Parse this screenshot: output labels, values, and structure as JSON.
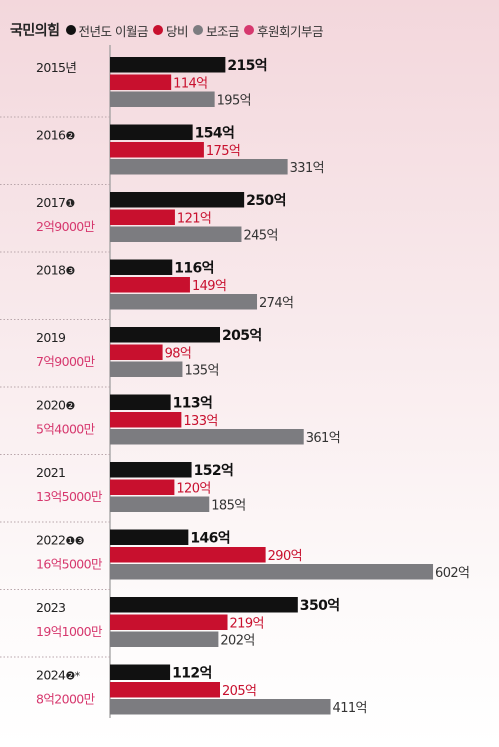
{
  "legend": {
    "party": "국민의힘",
    "items": [
      {
        "label": "전년도 이월금",
        "color": "#111111"
      },
      {
        "label": "당비",
        "color": "#c8102e"
      },
      {
        "label": "보조금",
        "color": "#7c7c80"
      },
      {
        "label": "후원회기부금",
        "color": "#d6386e"
      }
    ]
  },
  "chart_data": {
    "type": "bar",
    "orientation": "horizontal",
    "unit": "억",
    "series": [
      {
        "name": "전년도 이월금",
        "color": "#111111"
      },
      {
        "name": "당비",
        "color": "#c8102e"
      },
      {
        "name": "보조금",
        "color": "#7c7c80"
      }
    ],
    "donation_color": "#d6386e",
    "years": [
      {
        "year": "2015년",
        "marker": "",
        "donation": "",
        "values": [
          215,
          114,
          195
        ],
        "labels": [
          "215억",
          "114억",
          "195억"
        ]
      },
      {
        "year": "2016",
        "marker": "❷",
        "donation": "",
        "values": [
          154,
          175,
          331
        ],
        "labels": [
          "154억",
          "175억",
          "331억"
        ]
      },
      {
        "year": "2017",
        "marker": "❶",
        "donation": "2억9000만",
        "values": [
          250,
          121,
          245
        ],
        "labels": [
          "250억",
          "121억",
          "245억"
        ]
      },
      {
        "year": "2018",
        "marker": "❸",
        "donation": "",
        "values": [
          116,
          149,
          274
        ],
        "labels": [
          "116억",
          "149억",
          "274억"
        ]
      },
      {
        "year": "2019",
        "marker": "",
        "donation": "7억9000만",
        "values": [
          205,
          98,
          135
        ],
        "labels": [
          "205억",
          "98억",
          "135억"
        ]
      },
      {
        "year": "2020",
        "marker": "❷",
        "donation": "5억4000만",
        "values": [
          113,
          133,
          361
        ],
        "labels": [
          "113억",
          "133억",
          "361억"
        ]
      },
      {
        "year": "2021",
        "marker": "",
        "donation": "13억5000만",
        "values": [
          152,
          120,
          185
        ],
        "labels": [
          "152억",
          "120억",
          "185억"
        ]
      },
      {
        "year": "2022",
        "marker": "❶❸",
        "donation": "16억5000만",
        "values": [
          146,
          290,
          602
        ],
        "labels": [
          "146억",
          "290억",
          "602억"
        ]
      },
      {
        "year": "2023",
        "marker": "",
        "donation": "19억1000만",
        "values": [
          350,
          219,
          202
        ],
        "labels": [
          "350억",
          "219억",
          "202억"
        ]
      },
      {
        "year": "2024",
        "marker": "❷*",
        "donation": "8억2000만",
        "values": [
          112,
          205,
          411
        ],
        "labels": [
          "112억",
          "205억",
          "411억"
        ]
      }
    ]
  }
}
